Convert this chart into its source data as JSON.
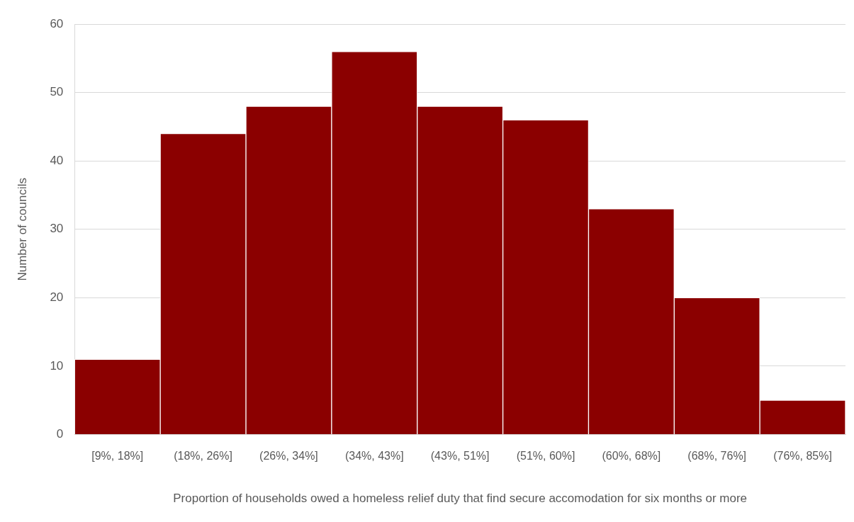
{
  "chart_data": {
    "type": "bar",
    "xlabel": "Proportion of households owed a homeless relief duty that find secure accomodation for six months or more",
    "ylabel": "Number of councils",
    "categories": [
      "[9%, 18%]",
      "(18%, 26%]",
      "(26%, 34%]",
      "(34%, 43%]",
      "(43%, 51%]",
      "(51%, 60%]",
      "(60%, 68%]",
      "(68%, 76%]",
      "(76%, 85%]"
    ],
    "values": [
      11,
      44,
      48,
      56,
      48,
      46,
      33,
      20,
      5
    ],
    "color": "#8b0000",
    "ylim": [
      0,
      60
    ],
    "yticks": [
      0,
      10,
      20,
      30,
      40,
      50,
      60
    ],
    "grid": "y"
  }
}
